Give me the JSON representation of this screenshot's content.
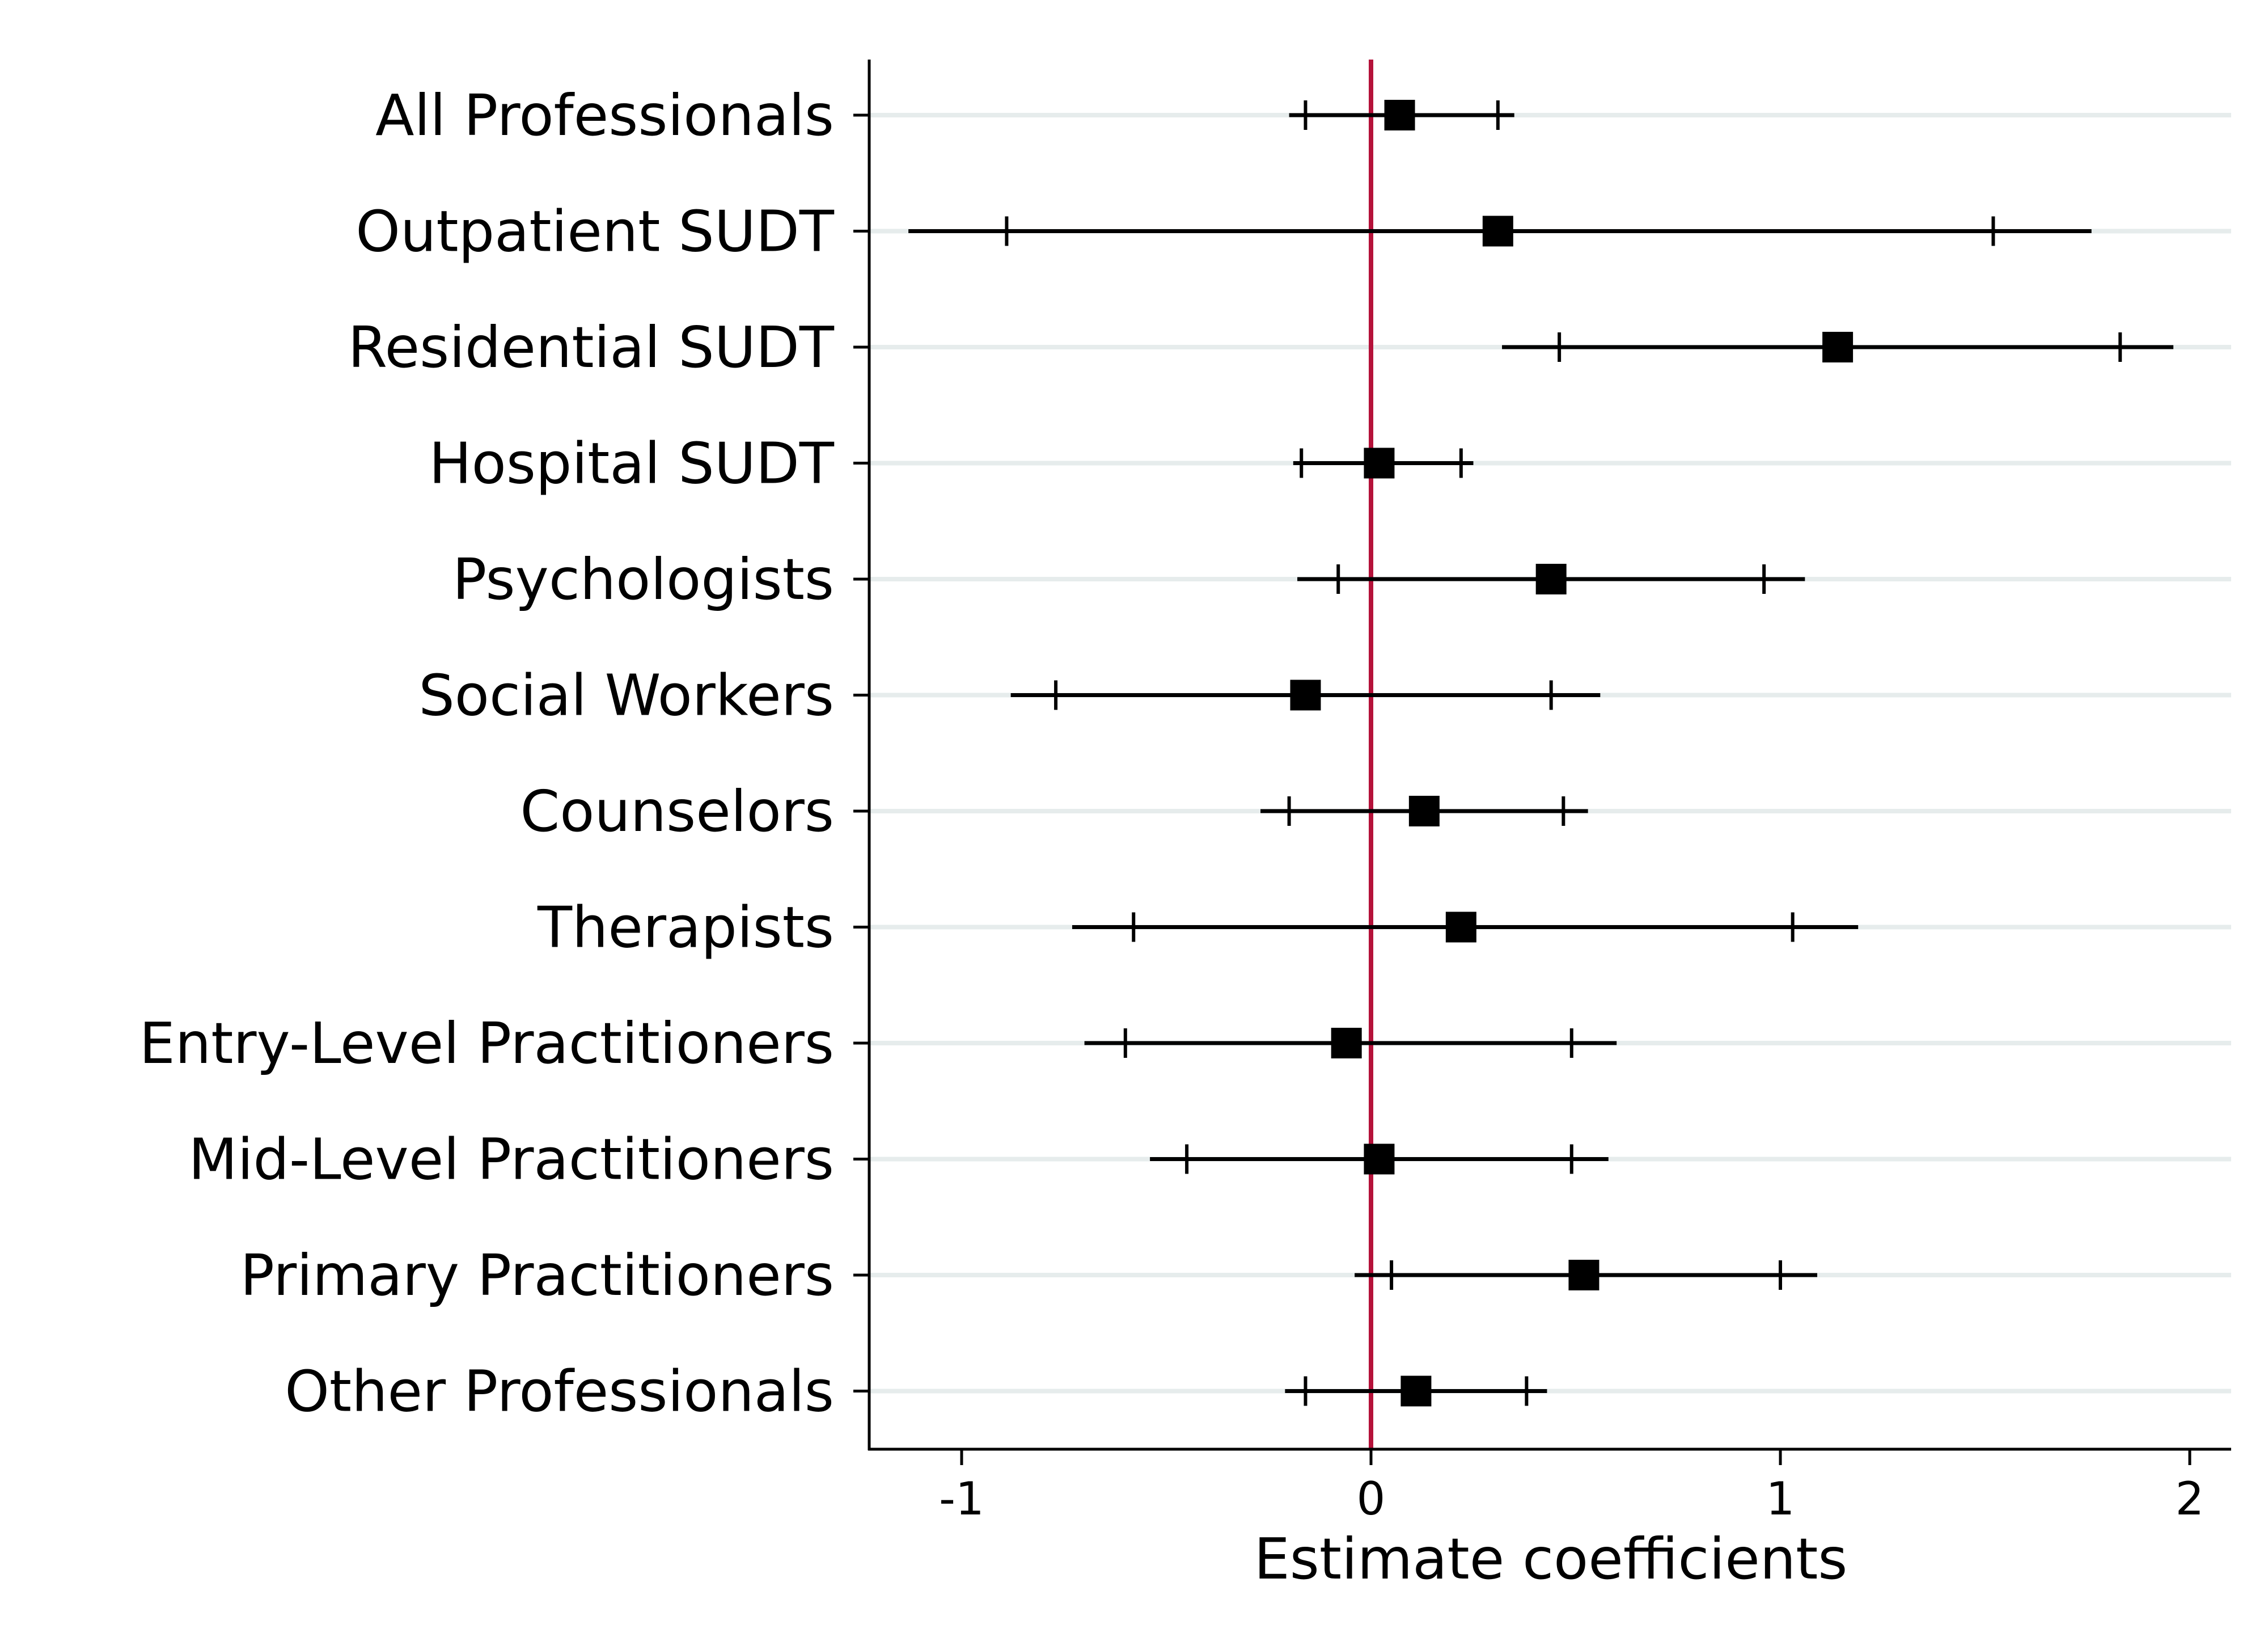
{
  "chart_data": {
    "type": "scatter",
    "subtype": "coefficient-plot",
    "title": "",
    "xlabel": "Estimate coefficients",
    "ylabel": "",
    "xlim": [
      -1.22,
      2.1
    ],
    "xticks": [
      -1,
      0,
      1,
      2
    ],
    "xtick_labels": [
      "-1",
      "0",
      "1",
      "2"
    ],
    "reference_line": {
      "x": 0,
      "color": "#b5123a"
    },
    "grid": {
      "horizontal": true,
      "vertical": false,
      "color": "#e6ecec"
    },
    "legend": "none",
    "marker": {
      "shape": "square",
      "color": "#000000"
    },
    "interval_notes": "outer span = 95% CI ends; inner ticks = 90% CI ends",
    "categories": [
      "All Professionals",
      "Outpatient SUDT",
      "Residential SUDT",
      "Hospital SUDT",
      "Psychologists",
      "Social Workers",
      "Counselors",
      "Therapists",
      "Entry-Level Practitioners",
      "Mid-Level Practitioners",
      "Primary Practitioners",
      "Other Professionals"
    ],
    "estimates": [
      0.07,
      0.31,
      1.14,
      0.02,
      0.44,
      -0.16,
      0.13,
      0.22,
      -0.06,
      0.02,
      0.52,
      0.11
    ],
    "ci95_low": [
      -0.2,
      -1.13,
      0.32,
      -0.19,
      -0.18,
      -0.88,
      -0.27,
      -0.73,
      -0.7,
      -0.54,
      -0.04,
      -0.21
    ],
    "ci95_high": [
      0.35,
      1.76,
      1.96,
      0.25,
      1.06,
      0.56,
      0.53,
      1.19,
      0.6,
      0.58,
      1.09,
      0.43
    ],
    "ci90_low": [
      -0.16,
      -0.89,
      0.46,
      -0.17,
      -0.08,
      -0.77,
      -0.2,
      -0.58,
      -0.6,
      -0.45,
      0.05,
      -0.16
    ],
    "ci90_high": [
      0.31,
      1.52,
      1.83,
      0.22,
      0.96,
      0.44,
      0.47,
      1.03,
      0.49,
      0.49,
      1.0,
      0.38
    ]
  }
}
